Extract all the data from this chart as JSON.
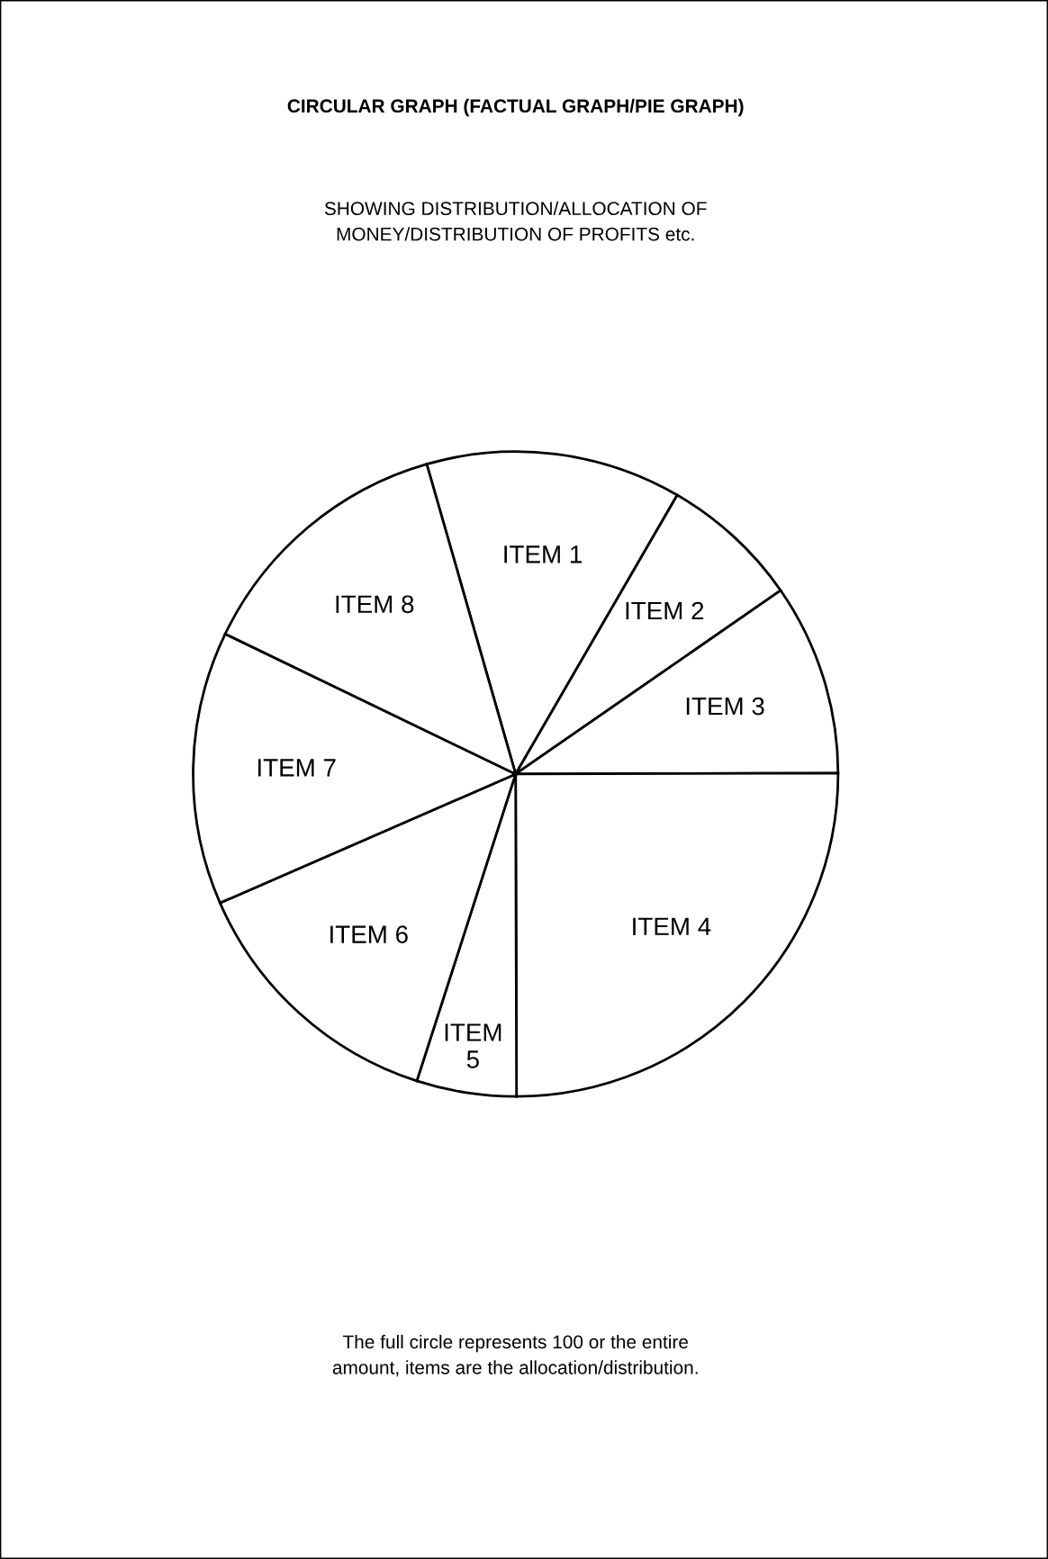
{
  "chart_data": {
    "type": "pie",
    "title": "CIRCULAR GRAPH (FACTUAL GRAPH/PIE GRAPH)",
    "subtitle": "SHOWING DISTRIBUTION/ALLOCATION OF\nMONEY/DISTRIBUTION OF PROFITS etc.",
    "categories": [
      "ITEM 1",
      "ITEM 2",
      "ITEM 3",
      "ITEM 4",
      "ITEM 5",
      "ITEM 6",
      "ITEM 7",
      "ITEM 8"
    ],
    "values": [
      12.8,
      7,
      9.6,
      25,
      5,
      13.5,
      13.7,
      13.4
    ],
    "colors": [
      "#ffffff",
      "#ffffff",
      "#ffffff",
      "#ffffff",
      "#ffffff",
      "#ffffff",
      "#ffffff",
      "#ffffff"
    ],
    "annotations": [
      "The full circle represents 100 or the entire\namount, items are the allocation/distribution."
    ]
  }
}
